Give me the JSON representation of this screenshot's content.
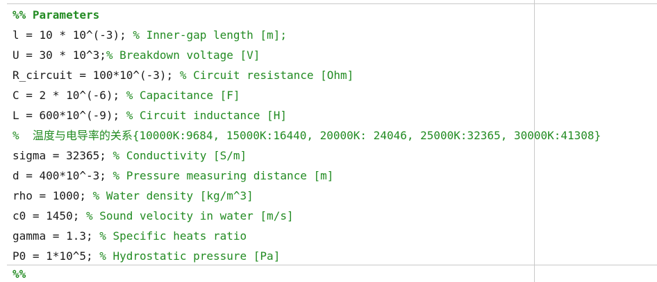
{
  "editor": {
    "cell_header": "%% Parameters",
    "lines": [
      {
        "code": "l = 10 * 10^(-3); ",
        "comment": "% Inner-gap length [m];"
      },
      {
        "code": "U = 30 * 10^3;",
        "comment": "% Breakdown voltage [V]"
      },
      {
        "code": "R_circuit = 100*10^(-3); ",
        "comment": "% Circuit resistance [Ohm]"
      },
      {
        "code": "C = 2 * 10^(-6); ",
        "comment": "% Capacitance [F]"
      },
      {
        "code": "L = 600*10^(-9); ",
        "comment": "% Circuit inductance [H]"
      },
      {
        "code": "",
        "comment": "%  温度与电导率的关系{10000K:9684, 15000K:16440, 20000K: 24046, 25000K:32365, 30000K:41308}"
      },
      {
        "code": "sigma = 32365; ",
        "comment": "% Conductivity [S/m]"
      },
      {
        "code": "d = 400*10^-3; ",
        "comment": "% Pressure measuring distance [m]"
      },
      {
        "code": "rho = 1000; ",
        "comment": "% Water density [kg/m^3]"
      },
      {
        "code": "c0 = 1450; ",
        "comment": "% Sound velocity in water [m/s]"
      },
      {
        "code": "gamma = 1.3; ",
        "comment": "% Specific heats ratio"
      },
      {
        "code": "P0 = 1*10^5; ",
        "comment": "% Hydrostatic pressure [Pa]"
      }
    ],
    "cell_end_marker": "%%"
  },
  "colors": {
    "comment": "#228b22",
    "code": "#1a1a1a",
    "divider": "#c8c8c8",
    "background": "#ffffff"
  }
}
